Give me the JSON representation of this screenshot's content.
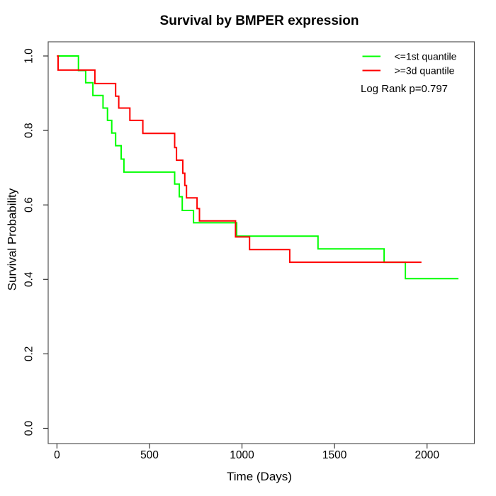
{
  "figure": {
    "background": "#ffffff",
    "box_color": "#555555",
    "tick_color": "#333333",
    "text_color": "#000000"
  },
  "chart_data": {
    "type": "line",
    "subtype": "kaplan_meier_step",
    "title": "Survival by BMPER expression",
    "xlabel": "Time (Days)",
    "ylabel": "Survival Probability",
    "x_ticks": [
      {
        "value": 0,
        "label": "0"
      },
      {
        "value": 500,
        "label": "500"
      },
      {
        "value": 1000,
        "label": "1000"
      },
      {
        "value": 1500,
        "label": "1500"
      },
      {
        "value": 2000,
        "label": "2000"
      }
    ],
    "y_ticks": [
      {
        "value": 0.0,
        "label": "0.0"
      },
      {
        "value": 0.2,
        "label": "0.2"
      },
      {
        "value": 0.4,
        "label": "0.4"
      },
      {
        "value": 0.6,
        "label": "0.6"
      },
      {
        "value": 0.8,
        "label": "0.8"
      },
      {
        "value": 1.0,
        "label": "1.0"
      }
    ],
    "xlim": [
      -47.5,
      2256
    ],
    "ylim": [
      -0.041,
      1.038
    ],
    "grid": false,
    "legend": {
      "position": "top-right",
      "entries": [
        {
          "label": "<=1st quantile",
          "color": "#00ff00"
        },
        {
          "label": ">=3d quantile",
          "color": "#ff0000"
        }
      ]
    },
    "annotation": {
      "label": "Log Rank p=0.797"
    },
    "series": [
      {
        "name": "<=1st quantile",
        "color": "#00ff00",
        "end_time": 2170,
        "points": [
          [
            0,
            1.0
          ],
          [
            116,
            0.961
          ],
          [
            155,
            0.928
          ],
          [
            194,
            0.894
          ],
          [
            249,
            0.86
          ],
          [
            273,
            0.827
          ],
          [
            296,
            0.793
          ],
          [
            317,
            0.759
          ],
          [
            347,
            0.723
          ],
          [
            362,
            0.688
          ],
          [
            636,
            0.656
          ],
          [
            661,
            0.622
          ],
          [
            677,
            0.585
          ],
          [
            738,
            0.552
          ],
          [
            971,
            0.516
          ],
          [
            1411,
            0.482
          ],
          [
            1768,
            0.446
          ],
          [
            1883,
            0.402
          ]
        ]
      },
      {
        "name": ">=3d quantile",
        "color": "#ff0000",
        "end_time": 1970,
        "points": [
          [
            0,
            1.0
          ],
          [
            6,
            0.962
          ],
          [
            205,
            0.926
          ],
          [
            317,
            0.892
          ],
          [
            334,
            0.86
          ],
          [
            394,
            0.827
          ],
          [
            464,
            0.792
          ],
          [
            636,
            0.754
          ],
          [
            646,
            0.72
          ],
          [
            680,
            0.685
          ],
          [
            691,
            0.652
          ],
          [
            700,
            0.619
          ],
          [
            757,
            0.59
          ],
          [
            770,
            0.557
          ],
          [
            965,
            0.514
          ],
          [
            1041,
            0.48
          ],
          [
            1258,
            0.446
          ]
        ]
      }
    ]
  }
}
